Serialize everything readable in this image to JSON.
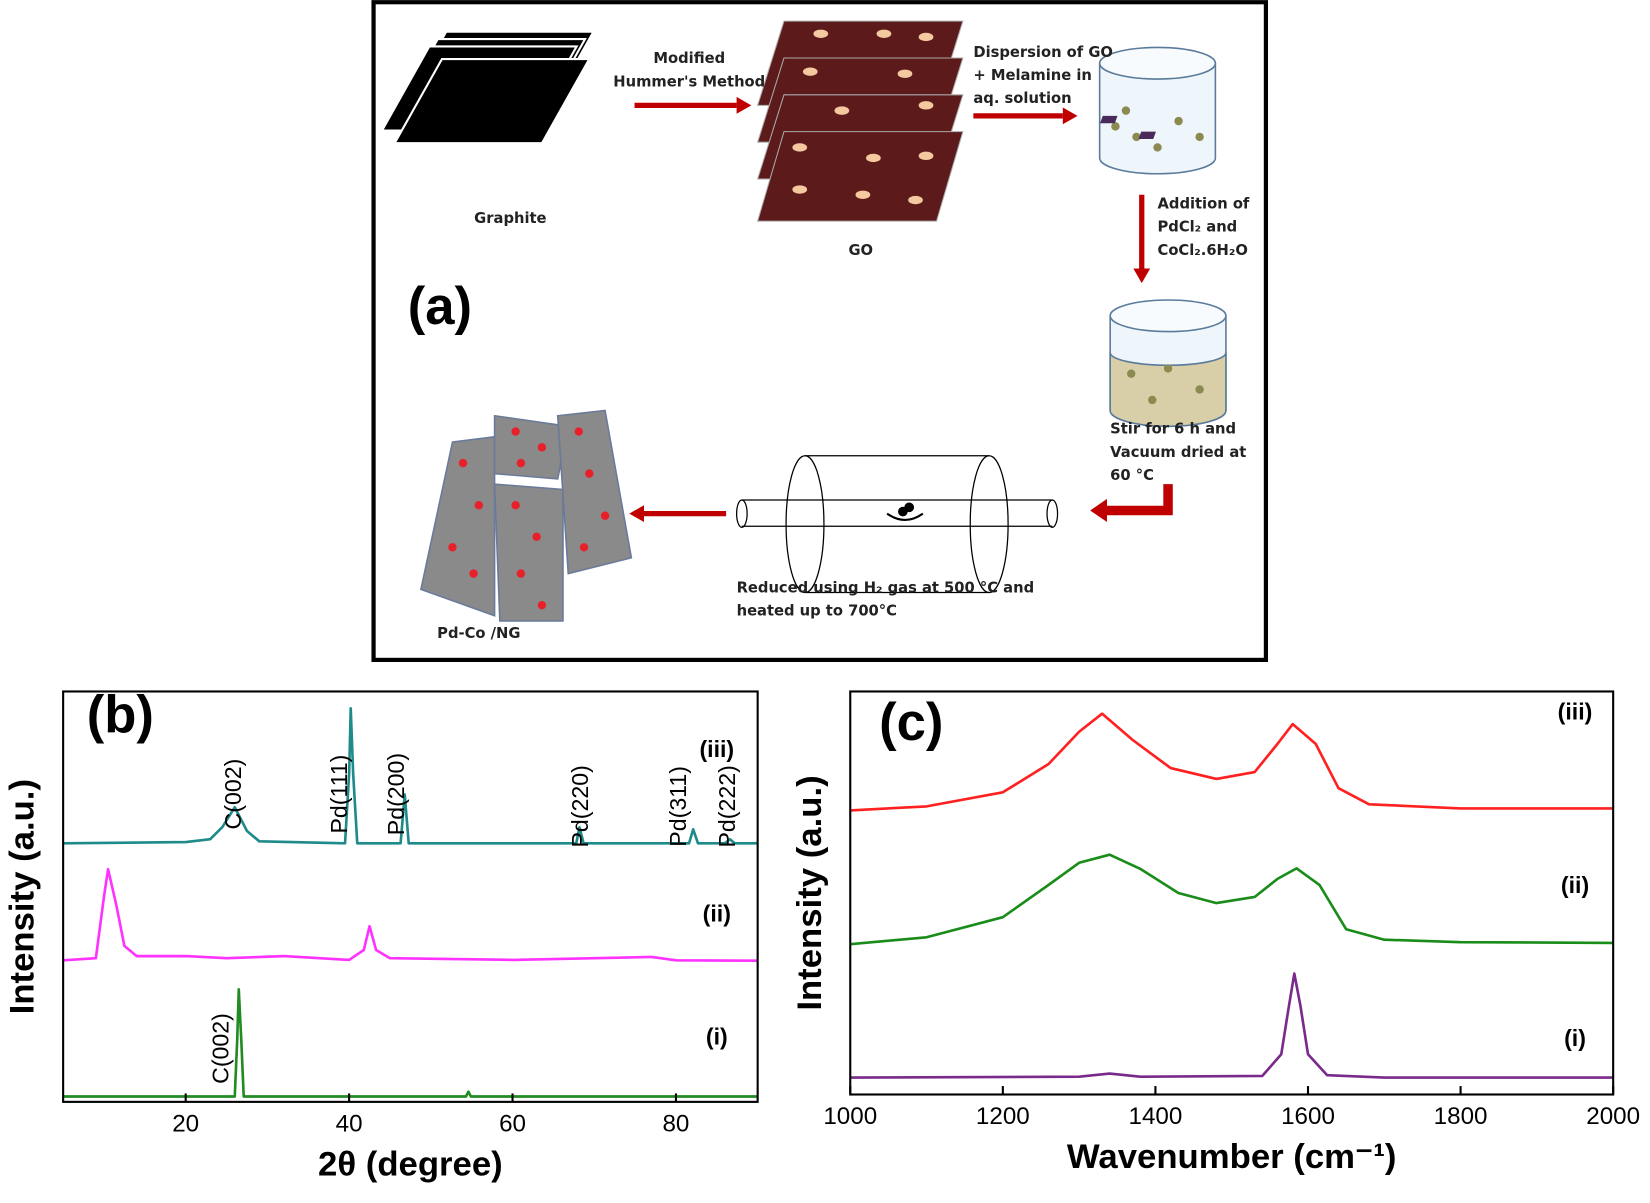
{
  "schematic": {
    "panel_label": "(a)",
    "method": [
      "Modified",
      "Hummer's Method"
    ],
    "graphite": "Graphite",
    "go": "GO",
    "dispersion": [
      "Dispersion of GO",
      "+ Melamine in",
      "aq. solution"
    ],
    "addition": [
      "Addition of",
      "PdCl₂ and",
      "CoCl₂.6H₂O"
    ],
    "stir": [
      "Stir for 6 h and",
      "Vacuum dried at",
      "60 °C"
    ],
    "reduced": [
      "Reduced using H₂ gas at 500 °C and",
      "heated up to 700°C"
    ],
    "product": "Pd-Co /NG"
  },
  "chart_data": [
    {
      "type": "line",
      "panel_label": "(b)",
      "x_label": "2θ (degree)",
      "y_label": "Intensity (a.u.)",
      "xlim": [
        5,
        90
      ],
      "xticks": [
        20,
        40,
        60,
        80
      ],
      "ylim": [
        0,
        100
      ],
      "annotations": [
        "C(002)",
        "Pd(111)",
        "Pd(200)",
        "Pd(220)",
        "Pd(311)",
        "Pd(222)",
        "C(002)"
      ],
      "series": [
        {
          "name": "(iii)",
          "color": "#1f8a8a",
          "x": [
            5,
            20,
            23,
            24.5,
            26,
            27.5,
            29,
            39.5,
            40,
            40.2,
            40.5,
            41,
            46.3,
            46.8,
            47.3,
            67.8,
            68.2,
            68.7,
            81.6,
            82.1,
            82.7,
            86,
            86.6,
            87.2,
            90
          ],
          "values": [
            63,
            63.3,
            64,
            67,
            71.8,
            66,
            63.5,
            63,
            80,
            95.9,
            80,
            63,
            63,
            74.9,
            63,
            63,
            66.9,
            63,
            63,
            66.4,
            63,
            63,
            64,
            63,
            63
          ]
        },
        {
          "name": "(ii)",
          "color": "#ff33ff",
          "x": [
            5,
            9,
            10,
            10.5,
            11.5,
            12.5,
            14,
            20,
            25,
            32,
            40,
            41.8,
            42.5,
            43.3,
            45,
            60,
            77,
            80,
            90
          ],
          "values": [
            34.5,
            35,
            50,
            56.7,
            48,
            38,
            35.5,
            35.5,
            35,
            35.5,
            34.6,
            37,
            42.8,
            37,
            35,
            34.6,
            35.3,
            34.5,
            34.4
          ]
        },
        {
          "name": "(i)",
          "color": "#228b22",
          "x": [
            5,
            26,
            26.3,
            26.5,
            26.8,
            27.1,
            54.3,
            54.6,
            54.9,
            90
          ],
          "values": [
            1.3,
            1.3,
            15,
            27.4,
            15,
            1.3,
            1.3,
            2.5,
            1.3,
            1.3
          ]
        }
      ]
    },
    {
      "type": "line",
      "panel_label": "(c)",
      "x_label": "Wavenumber (cm⁻¹)",
      "y_label": "Intensity (a.u.)",
      "xlim": [
        1000,
        2000
      ],
      "xticks": [
        1000,
        1200,
        1400,
        1600,
        1800,
        2000
      ],
      "ylim": [
        0,
        100
      ],
      "series": [
        {
          "name": "(iii)",
          "color": "#ff2020",
          "x": [
            1000,
            1100,
            1200,
            1260,
            1300,
            1330,
            1370,
            1420,
            1480,
            1530,
            1560,
            1580,
            1610,
            1640,
            1680,
            1800,
            2000
          ],
          "values": [
            70.5,
            71.5,
            75,
            82,
            90,
            94.5,
            88,
            81,
            78.3,
            80,
            87,
            91.9,
            87,
            76,
            72,
            71,
            71
          ]
        },
        {
          "name": "(ii)",
          "color": "#1a8c1a",
          "x": [
            1000,
            1100,
            1200,
            1260,
            1300,
            1340,
            1380,
            1430,
            1480,
            1530,
            1560,
            1585,
            1615,
            1650,
            1700,
            1800,
            2000
          ],
          "values": [
            37.3,
            39,
            44,
            52,
            57.5,
            59.5,
            56,
            50,
            47.5,
            49,
            53.5,
            56.1,
            52,
            41,
            38.4,
            37.8,
            37.6
          ]
        },
        {
          "name": "(i)",
          "color": "#7a2a8a",
          "x": [
            1000,
            1300,
            1340,
            1380,
            1540,
            1565,
            1575,
            1582,
            1590,
            1600,
            1625,
            1700,
            2000
          ],
          "values": [
            4.2,
            4.4,
            5.2,
            4.4,
            4.6,
            10,
            22,
            30,
            22,
            10,
            4.8,
            4.2,
            4.2
          ]
        }
      ]
    }
  ]
}
